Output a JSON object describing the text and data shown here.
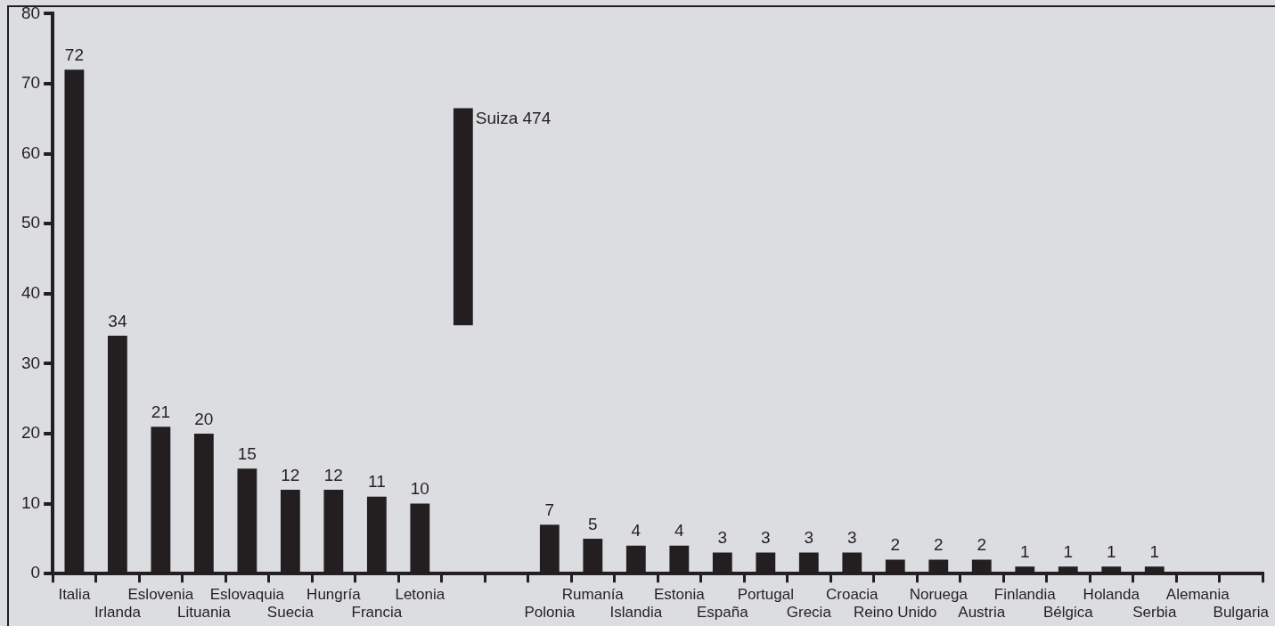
{
  "chart_data": {
    "type": "bar",
    "categories": [
      "Italia",
      "Irlanda",
      "Eslovenia",
      "Lituania",
      "Eslovaquia",
      "Suecia",
      "Hungría",
      "Francia",
      "Letonia",
      null,
      null,
      "Polonia",
      "Rumanía",
      "Islandia",
      "Estonia",
      "España",
      "Portugal",
      "Grecia",
      "Croacia",
      "Reino Unido",
      "Noruega",
      "Austria",
      "Finlandia",
      "Bélgica",
      "Holanda",
      "Serbia",
      "Alemania",
      "Bulgaria"
    ],
    "values": [
      72,
      34,
      21,
      20,
      15,
      12,
      12,
      11,
      10,
      31,
      null,
      7,
      5,
      4,
      4,
      3,
      3,
      3,
      3,
      2,
      2,
      2,
      1,
      1,
      1,
      1,
      null,
      null
    ],
    "base": [
      0,
      0,
      0,
      0,
      0,
      0,
      0,
      0,
      0,
      35.5,
      null,
      0,
      0,
      0,
      0,
      0,
      0,
      0,
      0,
      0,
      0,
      0,
      0,
      0,
      0,
      0,
      null,
      null
    ],
    "value_labels": [
      "72",
      "34",
      "21",
      "20",
      "15",
      "12",
      "12",
      "11",
      "10",
      null,
      null,
      "7",
      "5",
      "4",
      "4",
      "3",
      "3",
      "3",
      "3",
      "2",
      "2",
      "2",
      "1",
      "1",
      "1",
      "1",
      null,
      null
    ],
    "annotations": [
      "Suiza 474"
    ],
    "color": "#231f20",
    "ylim": [
      0,
      80
    ],
    "yticks": [
      0,
      10,
      20,
      30,
      40,
      50,
      60,
      70,
      80
    ],
    "grid": false,
    "legend": false
  }
}
